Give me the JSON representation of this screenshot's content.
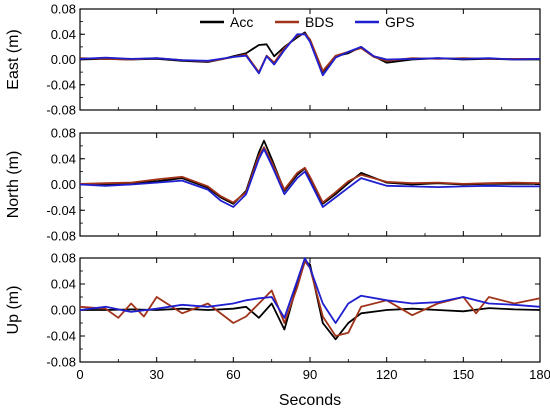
{
  "chart_data": {
    "type": "line",
    "xlabel": "Seconds",
    "xlim": [
      0,
      180
    ],
    "xticks": [
      0,
      30,
      60,
      90,
      120,
      150,
      180
    ],
    "legend": {
      "placement": "top-center of first panel",
      "entries": [
        "Acc",
        "BDS",
        "GPS"
      ]
    },
    "series_colors": {
      "Acc": "#000000",
      "BDS": "#a0341a",
      "GPS": "#1f1fd0"
    },
    "panels": [
      {
        "ylabel": "East (m)",
        "ylim": [
          -0.08,
          0.08
        ],
        "yticks": [
          "0.08",
          "0.04",
          "0.00",
          "-0.04",
          "-0.08"
        ],
        "series": [
          {
            "name": "Acc",
            "x": [
              0,
              10,
              20,
              30,
              40,
              50,
              55,
              60,
              65,
              70,
              73,
              76,
              80,
              85,
              88,
              90,
              95,
              100,
              105,
              110,
              115,
              120,
              130,
              140,
              150,
              160,
              170,
              180
            ],
            "y": [
              0,
              0.001,
              0,
              0.001,
              -0.002,
              -0.004,
              0,
              0.005,
              0.01,
              0.023,
              0.024,
              0.005,
              0.02,
              0.035,
              0.043,
              0.03,
              -0.02,
              0.005,
              0.01,
              0.02,
              0.005,
              -0.005,
              0,
              0.002,
              0,
              0.001,
              0,
              0
            ]
          },
          {
            "name": "BDS",
            "x": [
              0,
              10,
              20,
              30,
              40,
              50,
              55,
              60,
              65,
              70,
              73,
              76,
              80,
              85,
              88,
              90,
              95,
              100,
              105,
              110,
              115,
              120,
              130,
              140,
              150,
              160,
              170,
              180
            ],
            "y": [
              0.002,
              0.001,
              0,
              0.002,
              -0.001,
              -0.003,
              0,
              0.004,
              0.008,
              -0.02,
              0.006,
              -0.005,
              0.018,
              0.038,
              0.041,
              0.032,
              -0.018,
              0.006,
              0.012,
              0.018,
              0.004,
              -0.002,
              0.002,
              0.001,
              0.002,
              0.001,
              0.001,
              0.001
            ]
          },
          {
            "name": "GPS",
            "x": [
              0,
              10,
              20,
              30,
              40,
              50,
              55,
              60,
              65,
              70,
              73,
              76,
              80,
              85,
              88,
              90,
              95,
              100,
              105,
              110,
              115,
              120,
              130,
              140,
              150,
              160,
              170,
              180
            ],
            "y": [
              0.001,
              0.003,
              0.001,
              0.002,
              -0.001,
              -0.002,
              0.001,
              0.004,
              0.006,
              -0.022,
              0.005,
              -0.008,
              0.015,
              0.04,
              0.04,
              0.028,
              -0.025,
              0.003,
              0.012,
              0.02,
              0.005,
              0,
              0.001,
              0.002,
              0.001,
              0.002,
              0,
              0.001
            ]
          }
        ]
      },
      {
        "ylabel": "North (m)",
        "ylim": [
          -0.08,
          0.08
        ],
        "yticks": [
          "0.08",
          "0.04",
          "0.00",
          "-0.04",
          "-0.08"
        ],
        "series": [
          {
            "name": "Acc",
            "x": [
              0,
              10,
              20,
              30,
              40,
              50,
              55,
              60,
              65,
              70,
              72,
              75,
              80,
              85,
              88,
              90,
              95,
              100,
              105,
              110,
              120,
              130,
              140,
              150,
              160,
              170,
              180
            ],
            "y": [
              0,
              0,
              0.002,
              0.005,
              0.01,
              -0.005,
              -0.02,
              -0.03,
              -0.01,
              0.05,
              0.068,
              0.04,
              -0.01,
              0.015,
              0.025,
              0.01,
              -0.03,
              -0.015,
              0.002,
              0.018,
              0.003,
              0,
              0.002,
              0,
              0.001,
              0.001,
              0.001
            ]
          },
          {
            "name": "BDS",
            "x": [
              0,
              10,
              20,
              30,
              40,
              50,
              55,
              60,
              65,
              70,
              72,
              75,
              80,
              85,
              88,
              90,
              95,
              100,
              105,
              110,
              120,
              130,
              140,
              150,
              160,
              170,
              180
            ],
            "y": [
              0.001,
              0.002,
              0.003,
              0.008,
              0.012,
              -0.003,
              -0.018,
              -0.028,
              -0.012,
              0.045,
              0.058,
              0.035,
              -0.008,
              0.018,
              0.026,
              0.012,
              -0.028,
              -0.012,
              0.005,
              0.015,
              0.004,
              0.002,
              0.003,
              0.001,
              0.002,
              0.003,
              0.002
            ]
          },
          {
            "name": "GPS",
            "x": [
              0,
              10,
              20,
              30,
              40,
              50,
              55,
              60,
              65,
              70,
              72,
              75,
              80,
              85,
              88,
              90,
              95,
              100,
              105,
              110,
              120,
              130,
              140,
              150,
              160,
              170,
              180
            ],
            "y": [
              0,
              -0.002,
              0,
              0.003,
              0.006,
              -0.008,
              -0.025,
              -0.035,
              -0.015,
              0.04,
              0.055,
              0.03,
              -0.015,
              0.01,
              0.02,
              0.005,
              -0.035,
              -0.02,
              -0.005,
              0.01,
              -0.002,
              -0.003,
              -0.004,
              -0.003,
              -0.002,
              -0.003,
              -0.003
            ]
          }
        ]
      },
      {
        "ylabel": "Up (m)",
        "ylim": [
          -0.08,
          0.08
        ],
        "yticks": [
          "0.08",
          "0.04",
          "0.00",
          "-0.04",
          "-0.08"
        ],
        "series": [
          {
            "name": "Acc",
            "x": [
              0,
              10,
              20,
              30,
              40,
              50,
              60,
              65,
              70,
              75,
              80,
              85,
              88,
              90,
              95,
              100,
              105,
              110,
              120,
              130,
              140,
              150,
              160,
              170,
              180
            ],
            "y": [
              0,
              0,
              0.001,
              0,
              0.002,
              0,
              0.002,
              0.005,
              -0.012,
              0.01,
              -0.03,
              0.04,
              0.075,
              0.07,
              -0.02,
              -0.045,
              -0.02,
              -0.005,
              0,
              0.002,
              0,
              -0.002,
              0.003,
              0.001,
              0
            ]
          },
          {
            "name": "BDS",
            "x": [
              0,
              10,
              15,
              20,
              25,
              30,
              40,
              50,
              60,
              65,
              70,
              75,
              80,
              85,
              88,
              90,
              95,
              100,
              105,
              110,
              120,
              130,
              140,
              150,
              155,
              160,
              170,
              180
            ],
            "y": [
              0.005,
              0.002,
              -0.012,
              0.01,
              -0.01,
              0.02,
              -0.005,
              0.01,
              -0.02,
              -0.01,
              0.01,
              0.03,
              -0.02,
              0.035,
              0.075,
              0.065,
              -0.01,
              -0.04,
              -0.035,
              0.005,
              0.015,
              -0.008,
              0.01,
              0.02,
              -0.005,
              0.02,
              0.01,
              0.018
            ]
          },
          {
            "name": "GPS",
            "x": [
              0,
              10,
              20,
              30,
              40,
              50,
              60,
              65,
              70,
              75,
              80,
              85,
              88,
              90,
              95,
              100,
              105,
              110,
              120,
              130,
              140,
              150,
              160,
              170,
              180
            ],
            "y": [
              0,
              0.005,
              -0.003,
              0.002,
              0.008,
              0.005,
              0.01,
              0.015,
              0.018,
              0.02,
              -0.012,
              0.045,
              0.08,
              0.065,
              0.01,
              -0.02,
              0.01,
              0.022,
              0.015,
              0.01,
              0.012,
              0.02,
              0.01,
              0.008,
              0.005
            ]
          }
        ]
      }
    ]
  }
}
